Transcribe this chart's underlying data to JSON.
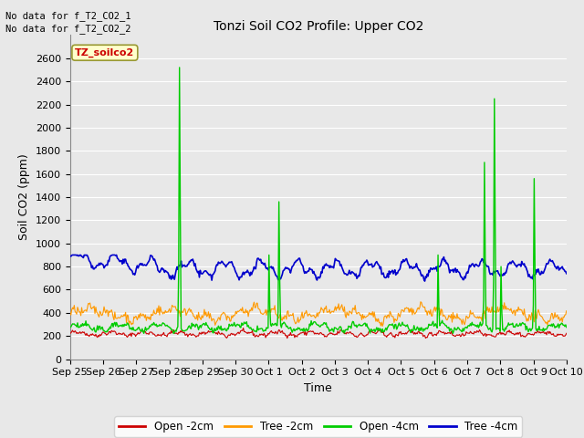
{
  "title": "Tonzi Soil CO2 Profile: Upper CO2",
  "xlabel": "Time",
  "ylabel": "Soil CO2 (ppm)",
  "ylim": [
    0,
    2800
  ],
  "yticks": [
    0,
    200,
    400,
    600,
    800,
    1000,
    1200,
    1400,
    1600,
    1800,
    2000,
    2200,
    2400,
    2600
  ],
  "xtick_labels": [
    "Sep 25",
    "Sep 26",
    "Sep 27",
    "Sep 28",
    "Sep 29",
    "Sep 30",
    "Oct 1",
    "Oct 2",
    "Oct 3",
    "Oct 4",
    "Oct 5",
    "Oct 6",
    "Oct 7",
    "Oct 8",
    "Oct 9",
    "Oct 10"
  ],
  "legend_labels": [
    "Open -2cm",
    "Tree -2cm",
    "Open -4cm",
    "Tree -4cm"
  ],
  "legend_colors": [
    "#cc0000",
    "#ff9900",
    "#00cc00",
    "#0000cc"
  ],
  "text_annotations": [
    "No data for f_T2_CO2_1",
    "No data for f_T2_CO2_2"
  ],
  "box_label": "TZ_soilco2",
  "plot_bg_color": "#e8e8e8",
  "fig_bg_color": "#e8e8e8",
  "grid_color": "#ffffff",
  "n_points": 600,
  "title_fontsize": 10,
  "axis_fontsize": 9,
  "tick_fontsize": 8
}
